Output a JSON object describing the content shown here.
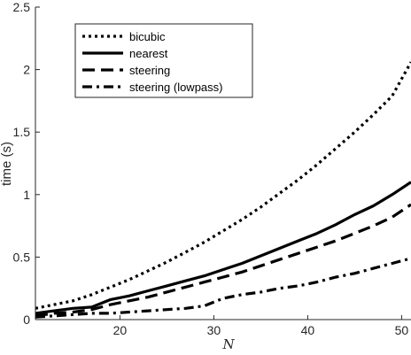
{
  "chart_data": {
    "type": "line",
    "xlabel": "N",
    "ylabel": "time (s)",
    "xlim": [
      11,
      51
    ],
    "ylim": [
      0,
      2.5
    ],
    "xticks": [
      "20",
      "30",
      "40",
      "50"
    ],
    "yticks": [
      "0",
      "0.5",
      "1",
      "1.5",
      "2",
      "2.5"
    ],
    "grid": false,
    "legend_position": "top-left",
    "x": [
      11,
      13,
      15,
      17,
      19,
      21,
      23,
      25,
      27,
      29,
      31,
      33,
      35,
      37,
      39,
      41,
      43,
      45,
      47,
      49,
      51
    ],
    "series": [
      {
        "name": "bicubic",
        "dash": "dotted",
        "values": [
          0.09,
          0.12,
          0.15,
          0.2,
          0.26,
          0.32,
          0.39,
          0.46,
          0.54,
          0.62,
          0.71,
          0.8,
          0.9,
          1.01,
          1.12,
          1.24,
          1.37,
          1.5,
          1.64,
          1.79,
          2.06
        ]
      },
      {
        "name": "nearest",
        "dash": "solid",
        "values": [
          0.05,
          0.07,
          0.09,
          0.1,
          0.16,
          0.19,
          0.23,
          0.27,
          0.31,
          0.35,
          0.4,
          0.45,
          0.51,
          0.57,
          0.63,
          0.69,
          0.76,
          0.84,
          0.91,
          1.0,
          1.1
        ]
      },
      {
        "name": "steering",
        "dash": "dashed",
        "values": [
          0.03,
          0.05,
          0.06,
          0.08,
          0.12,
          0.15,
          0.18,
          0.22,
          0.26,
          0.3,
          0.34,
          0.38,
          0.43,
          0.48,
          0.53,
          0.58,
          0.63,
          0.69,
          0.75,
          0.82,
          0.92
        ]
      },
      {
        "name": "steering (lowpass)",
        "dash": "dashdot",
        "values": [
          0.02,
          0.03,
          0.04,
          0.05,
          0.05,
          0.06,
          0.07,
          0.08,
          0.09,
          0.11,
          0.17,
          0.2,
          0.22,
          0.25,
          0.27,
          0.3,
          0.34,
          0.37,
          0.41,
          0.45,
          0.49
        ]
      }
    ]
  }
}
